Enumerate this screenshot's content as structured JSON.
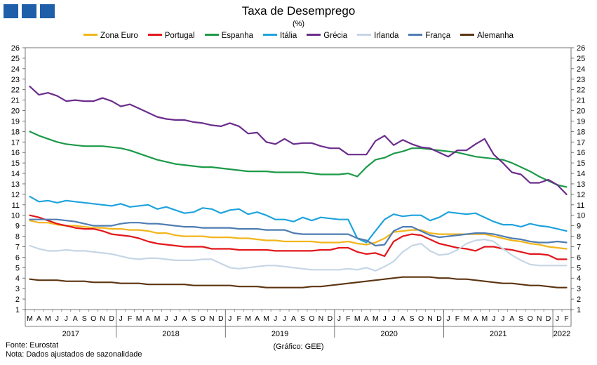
{
  "header": {
    "title": "Taxa de Desemprego",
    "subtitle": "(%)"
  },
  "footer": {
    "source": "Fonte: Eurostat",
    "note": "Nota: Dados ajustados de sazonalidade",
    "credit": "(Gráfico: GEE)"
  },
  "chart_data": {
    "type": "line",
    "ylim": [
      1,
      26
    ],
    "yticks": [
      1,
      2,
      3,
      4,
      5,
      6,
      7,
      8,
      9,
      10,
      11,
      12,
      13,
      14,
      15,
      16,
      17,
      18,
      19,
      20,
      21,
      22,
      23,
      24,
      25,
      26
    ],
    "grid": false,
    "legend_position": "top",
    "month_labels": [
      "M",
      "A",
      "M",
      "J",
      "J",
      "A",
      "S",
      "O",
      "N",
      "D",
      "J",
      "F",
      "M",
      "A",
      "M",
      "J",
      "J",
      "A",
      "S",
      "O",
      "N",
      "D",
      "J",
      "F",
      "M",
      "A",
      "M",
      "J",
      "J",
      "A",
      "S",
      "O",
      "N",
      "D",
      "J",
      "F",
      "M",
      "A",
      "M",
      "J",
      "J",
      "A",
      "S",
      "O",
      "N",
      "D",
      "J",
      "F",
      "M",
      "A",
      "M",
      "J",
      "J",
      "A",
      "S",
      "O",
      "N",
      "D",
      "J",
      "F"
    ],
    "years": [
      {
        "label": "2017",
        "start": 0,
        "end": 9
      },
      {
        "label": "2018",
        "start": 10,
        "end": 21
      },
      {
        "label": "2019",
        "start": 22,
        "end": 33
      },
      {
        "label": "2020",
        "start": 34,
        "end": 45
      },
      {
        "label": "2021",
        "start": 46,
        "end": 57
      },
      {
        "label": "2022",
        "start": 58,
        "end": 59
      }
    ],
    "series": [
      {
        "name": "Zona Euro",
        "color": "#f2b51c",
        "values": [
          9.5,
          9.3,
          9.3,
          9.1,
          9.0,
          9.0,
          8.9,
          8.8,
          8.8,
          8.7,
          8.7,
          8.6,
          8.6,
          8.5,
          8.3,
          8.3,
          8.1,
          8.0,
          8.0,
          8.0,
          7.9,
          7.9,
          7.9,
          7.8,
          7.8,
          7.7,
          7.6,
          7.6,
          7.5,
          7.5,
          7.5,
          7.5,
          7.4,
          7.4,
          7.4,
          7.5,
          7.3,
          7.2,
          7.4,
          7.8,
          8.4,
          8.5,
          8.6,
          8.6,
          8.3,
          8.2,
          8.2,
          8.2,
          8.2,
          8.2,
          8.2,
          8.0,
          7.8,
          7.6,
          7.5,
          7.3,
          7.2,
          7.0,
          6.9,
          6.8
        ]
      },
      {
        "name": "Portugal",
        "color": "#e2171b",
        "values": [
          10.0,
          9.8,
          9.5,
          9.2,
          9.0,
          8.8,
          8.7,
          8.7,
          8.5,
          8.2,
          8.1,
          8.0,
          7.8,
          7.5,
          7.3,
          7.2,
          7.1,
          7.0,
          7.0,
          7.0,
          6.8,
          6.8,
          6.8,
          6.7,
          6.7,
          6.7,
          6.7,
          6.6,
          6.6,
          6.6,
          6.6,
          6.6,
          6.7,
          6.7,
          6.9,
          6.9,
          6.5,
          6.3,
          6.4,
          6.1,
          7.5,
          8.0,
          8.2,
          8.1,
          7.7,
          7.3,
          7.1,
          6.9,
          6.8,
          6.6,
          7.0,
          7.0,
          6.8,
          6.7,
          6.5,
          6.3,
          6.3,
          6.2,
          5.8,
          5.8
        ]
      },
      {
        "name": "Espanha",
        "color": "#1c9a48",
        "values": [
          18.0,
          17.6,
          17.3,
          17.0,
          16.8,
          16.7,
          16.6,
          16.6,
          16.6,
          16.5,
          16.4,
          16.2,
          15.9,
          15.6,
          15.3,
          15.1,
          14.9,
          14.8,
          14.7,
          14.6,
          14.6,
          14.5,
          14.4,
          14.3,
          14.2,
          14.2,
          14.2,
          14.1,
          14.1,
          14.1,
          14.1,
          14.0,
          13.9,
          13.9,
          13.9,
          14.0,
          13.7,
          14.6,
          15.3,
          15.5,
          15.9,
          16.1,
          16.4,
          16.4,
          16.3,
          16.2,
          16.1,
          16.0,
          15.8,
          15.6,
          15.5,
          15.4,
          15.3,
          15.0,
          14.6,
          14.2,
          13.7,
          13.3,
          12.9,
          12.7
        ]
      },
      {
        "name": "Itália",
        "color": "#1fa3dd",
        "values": [
          11.8,
          11.3,
          11.4,
          11.2,
          11.4,
          11.3,
          11.2,
          11.1,
          11.0,
          10.9,
          11.1,
          10.8,
          10.9,
          11.0,
          10.6,
          10.8,
          10.5,
          10.2,
          10.3,
          10.7,
          10.6,
          10.2,
          10.5,
          10.6,
          10.1,
          10.3,
          10.0,
          9.6,
          9.6,
          9.4,
          9.8,
          9.5,
          9.8,
          9.7,
          9.6,
          9.6,
          7.8,
          7.4,
          8.5,
          9.6,
          10.1,
          9.9,
          10.0,
          10.0,
          9.5,
          9.8,
          10.3,
          10.2,
          10.1,
          10.2,
          9.8,
          9.4,
          9.1,
          9.1,
          8.9,
          9.2,
          9.0,
          8.9,
          8.7,
          8.5
        ]
      },
      {
        "name": "Grécia",
        "color": "#6b2d8c",
        "values": [
          22.3,
          21.5,
          21.7,
          21.4,
          20.9,
          21.0,
          20.9,
          20.9,
          21.2,
          20.9,
          20.4,
          20.6,
          20.2,
          19.8,
          19.4,
          19.2,
          19.1,
          19.1,
          18.9,
          18.8,
          18.6,
          18.5,
          18.8,
          18.5,
          17.8,
          17.9,
          17.0,
          16.8,
          17.3,
          16.8,
          16.9,
          16.9,
          16.6,
          16.4,
          16.4,
          15.8,
          15.8,
          15.8,
          17.1,
          17.6,
          16.7,
          17.2,
          16.8,
          16.5,
          16.4,
          16.0,
          15.6,
          16.2,
          16.2,
          16.8,
          17.3,
          15.8,
          15.0,
          14.1,
          13.9,
          13.1,
          13.1,
          13.4,
          12.9,
          12.0
        ]
      },
      {
        "name": "Irlanda",
        "color": "#c6d6e6",
        "values": [
          7.1,
          6.8,
          6.6,
          6.6,
          6.7,
          6.6,
          6.6,
          6.5,
          6.4,
          6.3,
          6.1,
          5.9,
          5.8,
          5.9,
          5.9,
          5.8,
          5.7,
          5.7,
          5.7,
          5.8,
          5.8,
          5.4,
          5.0,
          4.9,
          5.0,
          5.1,
          5.2,
          5.2,
          5.1,
          5.0,
          4.9,
          4.8,
          4.8,
          4.8,
          4.8,
          4.9,
          4.8,
          5.0,
          4.7,
          5.1,
          5.6,
          6.5,
          7.1,
          7.3,
          6.6,
          6.2,
          6.3,
          6.7,
          7.3,
          7.6,
          7.7,
          7.5,
          6.8,
          6.2,
          5.7,
          5.3,
          5.2,
          5.2,
          5.2,
          5.2
        ]
      },
      {
        "name": "França",
        "color": "#4f7db3",
        "values": [
          9.6,
          9.6,
          9.6,
          9.6,
          9.5,
          9.4,
          9.2,
          9.0,
          9.0,
          9.0,
          9.2,
          9.3,
          9.3,
          9.2,
          9.2,
          9.1,
          9.0,
          8.9,
          8.9,
          8.8,
          8.8,
          8.8,
          8.8,
          8.7,
          8.7,
          8.7,
          8.6,
          8.6,
          8.6,
          8.3,
          8.2,
          8.2,
          8.2,
          8.2,
          8.2,
          8.2,
          7.8,
          7.6,
          7.1,
          7.2,
          8.5,
          8.9,
          8.9,
          8.5,
          8.1,
          7.9,
          8.0,
          8.1,
          8.2,
          8.3,
          8.3,
          8.2,
          8.0,
          7.8,
          7.7,
          7.5,
          7.4,
          7.4,
          7.5,
          7.4
        ]
      },
      {
        "name": "Alemanha",
        "color": "#5c3511",
        "values": [
          3.9,
          3.8,
          3.8,
          3.8,
          3.7,
          3.7,
          3.7,
          3.6,
          3.6,
          3.6,
          3.5,
          3.5,
          3.5,
          3.4,
          3.4,
          3.4,
          3.4,
          3.4,
          3.3,
          3.3,
          3.3,
          3.3,
          3.3,
          3.2,
          3.2,
          3.2,
          3.1,
          3.1,
          3.1,
          3.1,
          3.1,
          3.2,
          3.2,
          3.3,
          3.4,
          3.5,
          3.6,
          3.7,
          3.8,
          3.9,
          4.0,
          4.1,
          4.1,
          4.1,
          4.1,
          4.0,
          4.0,
          3.9,
          3.9,
          3.8,
          3.7,
          3.6,
          3.5,
          3.5,
          3.4,
          3.3,
          3.3,
          3.2,
          3.1,
          3.1
        ]
      }
    ]
  }
}
